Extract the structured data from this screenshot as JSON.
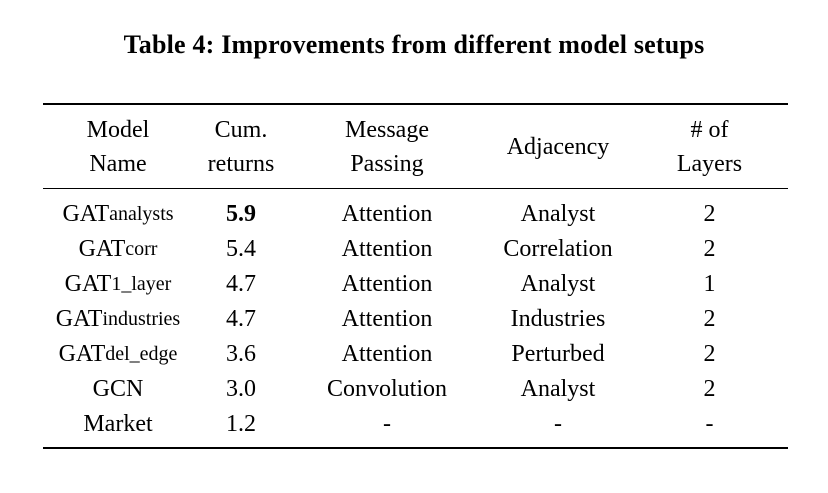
{
  "caption": "Table 4: Improvements from different model setups",
  "header": {
    "model_name": [
      "Model",
      "Name"
    ],
    "cum_returns": [
      "Cum.",
      "returns"
    ],
    "message_passing": [
      "Message",
      "Passing"
    ],
    "adjacency": "Adjacency",
    "num_layers": [
      "# of",
      "Layers"
    ]
  },
  "rows": [
    {
      "model": "GAT",
      "model_sub": "analysts",
      "returns": "5.9",
      "passing": "Attention",
      "adjacency": "Analyst",
      "layers": "2"
    },
    {
      "model": "GAT",
      "model_sub": "corr",
      "returns": "5.4",
      "passing": "Attention",
      "adjacency": "Correlation",
      "layers": "2"
    },
    {
      "model": "GAT",
      "model_sub": "1_layer",
      "returns": "4.7",
      "passing": "Attention",
      "adjacency": "Analyst",
      "layers": "1"
    },
    {
      "model": "GAT",
      "model_sub": "industries",
      "returns": "4.7",
      "passing": "Attention",
      "adjacency": "Industries",
      "layers": "2"
    },
    {
      "model": "GAT",
      "model_sub": "del_edge",
      "returns": "3.6",
      "passing": "Attention",
      "adjacency": "Perturbed",
      "layers": "2"
    },
    {
      "model": "GCN",
      "model_sub": "",
      "returns": "3.0",
      "passing": "Convolution",
      "adjacency": "Analyst",
      "layers": "2"
    },
    {
      "model": "Market",
      "model_sub": "",
      "returns": "1.2",
      "passing": "-",
      "adjacency": "-",
      "layers": "-"
    }
  ]
}
